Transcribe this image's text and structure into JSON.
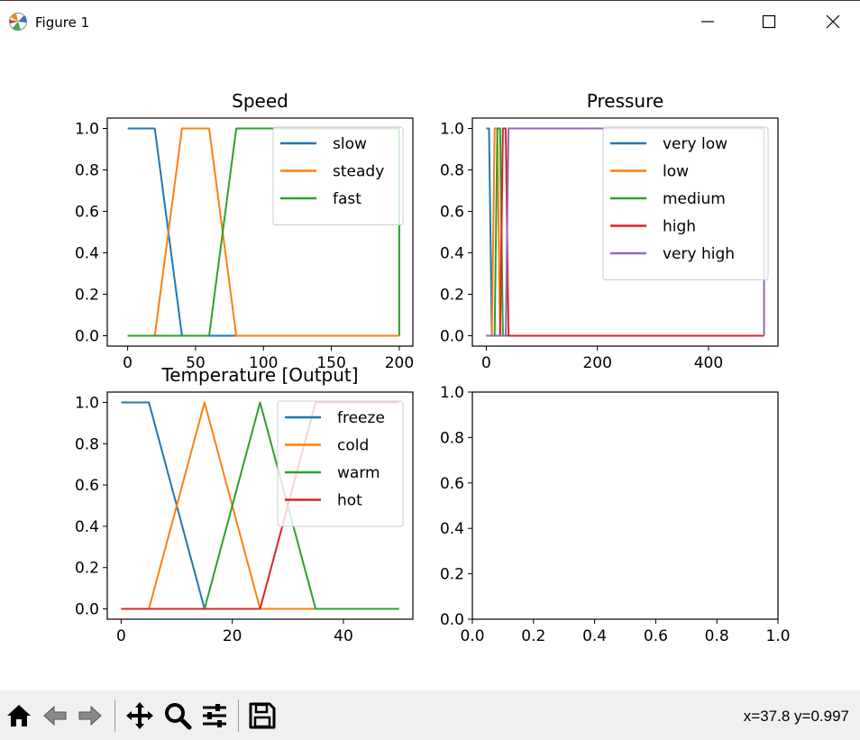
{
  "window": {
    "title": "Figure 1",
    "minimize_icon": "minimize-icon",
    "maximize_icon": "maximize-icon",
    "close_icon": "close-icon"
  },
  "toolbar": {
    "buttons": [
      {
        "name": "home-button",
        "icon": "home-icon"
      },
      {
        "name": "back-button",
        "icon": "back-arrow-icon"
      },
      {
        "name": "forward-button",
        "icon": "forward-arrow-icon"
      },
      {
        "name": "pan-button",
        "icon": "move-icon"
      },
      {
        "name": "zoom-button",
        "icon": "magnifier-icon"
      },
      {
        "name": "configure-subplots-button",
        "icon": "sliders-icon"
      },
      {
        "name": "save-button",
        "icon": "floppy-disk-icon"
      }
    ],
    "coordinates": "x=37.8 y=0.997"
  },
  "colors": {
    "blue": "#1f77b4",
    "orange": "#ff7f0e",
    "green": "#2ca02c",
    "red": "#d62728",
    "purple": "#9467bd"
  },
  "chart_data": [
    {
      "type": "line",
      "title": "Speed",
      "xlim": [
        -15,
        210
      ],
      "ylim": [
        -0.05,
        1.05
      ],
      "xticks": [
        "0",
        "50",
        "100",
        "150",
        "200"
      ],
      "yticks": [
        "0.0",
        "0.2",
        "0.4",
        "0.6",
        "0.8",
        "1.0"
      ],
      "xtick_values": [
        0,
        50,
        100,
        150,
        200
      ],
      "ytick_values": [
        0,
        0.2,
        0.4,
        0.6,
        0.8,
        1.0
      ],
      "legend": "upper right",
      "series": [
        {
          "name": "slow",
          "color": "#1f77b4",
          "x": [
            0,
            20,
            40,
            100
          ],
          "y": [
            1,
            1,
            0,
            0
          ]
        },
        {
          "name": "steady",
          "color": "#ff7f0e",
          "x": [
            0,
            20,
            40,
            60,
            80,
            200
          ],
          "y": [
            0,
            0,
            1,
            1,
            0,
            0
          ]
        },
        {
          "name": "fast",
          "color": "#2ca02c",
          "x": [
            0,
            60,
            80,
            200,
            200
          ],
          "y": [
            0,
            0,
            1,
            1,
            0
          ]
        }
      ]
    },
    {
      "type": "line",
      "title": "Pressure",
      "xlim": [
        -25,
        525
      ],
      "ylim": [
        -0.05,
        1.05
      ],
      "xticks": [
        "0",
        "200",
        "400"
      ],
      "yticks": [
        "0.0",
        "0.2",
        "0.4",
        "0.6",
        "0.8",
        "1.0"
      ],
      "xtick_values": [
        0,
        200,
        400
      ],
      "ytick_values": [
        0,
        0.2,
        0.4,
        0.6,
        0.8,
        1.0
      ],
      "legend": "upper right",
      "series": [
        {
          "name": "very low",
          "color": "#1f77b4",
          "x": [
            0,
            5,
            10,
            40
          ],
          "y": [
            1,
            1,
            0,
            0
          ]
        },
        {
          "name": "low",
          "color": "#ff7f0e",
          "x": [
            0,
            10,
            15,
            20,
            25,
            40
          ],
          "y": [
            0,
            0,
            1,
            1,
            0,
            0
          ]
        },
        {
          "name": "medium",
          "color": "#2ca02c",
          "x": [
            0,
            15,
            20,
            25,
            30,
            60
          ],
          "y": [
            0,
            0,
            1,
            1,
            0,
            0
          ]
        },
        {
          "name": "high",
          "color": "#d62728",
          "x": [
            0,
            25,
            30,
            35,
            40,
            500
          ],
          "y": [
            0,
            0,
            1,
            1,
            0,
            0
          ]
        },
        {
          "name": "very high",
          "color": "#9467bd",
          "x": [
            0,
            35,
            40,
            500,
            500
          ],
          "y": [
            0,
            0,
            1,
            1,
            0
          ]
        }
      ]
    },
    {
      "type": "line",
      "title": "Temperature [Output]",
      "xlim": [
        -2.5,
        52.5
      ],
      "ylim": [
        -0.05,
        1.05
      ],
      "xticks": [
        "0",
        "20",
        "40"
      ],
      "yticks": [
        "0.0",
        "0.2",
        "0.4",
        "0.6",
        "0.8",
        "1.0"
      ],
      "xtick_values": [
        0,
        20,
        40
      ],
      "ytick_values": [
        0,
        0.2,
        0.4,
        0.6,
        0.8,
        1.0
      ],
      "legend": "upper right",
      "series": [
        {
          "name": "freeze",
          "color": "#1f77b4",
          "x": [
            0,
            5,
            15,
            50
          ],
          "y": [
            1,
            1,
            0,
            0
          ]
        },
        {
          "name": "cold",
          "color": "#ff7f0e",
          "x": [
            0,
            5,
            15,
            25,
            50
          ],
          "y": [
            0,
            0,
            1,
            0,
            0
          ]
        },
        {
          "name": "warm",
          "color": "#2ca02c",
          "x": [
            0,
            15,
            25,
            35,
            50
          ],
          "y": [
            0,
            0,
            1,
            0,
            0
          ]
        },
        {
          "name": "hot",
          "color": "#d62728",
          "x": [
            0,
            25,
            35,
            50
          ],
          "y": [
            0,
            0,
            1,
            1
          ]
        }
      ]
    },
    {
      "type": "line",
      "title": "",
      "xlim": [
        0,
        1
      ],
      "ylim": [
        0,
        1
      ],
      "xticks": [
        "0.0",
        "0.2",
        "0.4",
        "0.6",
        "0.8",
        "1.0"
      ],
      "yticks": [
        "0.0",
        "0.2",
        "0.4",
        "0.6",
        "0.8",
        "1.0"
      ],
      "xtick_values": [
        0,
        0.2,
        0.4,
        0.6,
        0.8,
        1.0
      ],
      "ytick_values": [
        0,
        0.2,
        0.4,
        0.6,
        0.8,
        1.0
      ],
      "series": []
    }
  ]
}
